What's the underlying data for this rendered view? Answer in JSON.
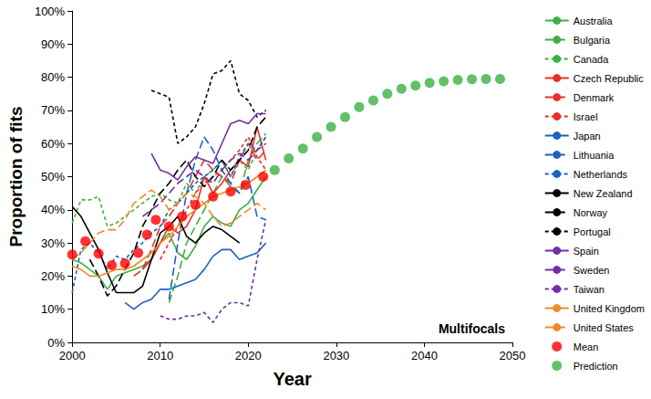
{
  "chart_data": {
    "type": "line",
    "annotation": "Multifocals",
    "x_label": "Year",
    "y_label": "Proportion of fits",
    "xlim": [
      2000,
      2050
    ],
    "xticks": [
      2000,
      2010,
      2020,
      2030,
      2040,
      2050
    ],
    "ylim": [
      0,
      100
    ],
    "yticks": [
      {
        "value": 0,
        "label": "0%"
      },
      {
        "value": 10,
        "label": "10%"
      },
      {
        "value": 20,
        "label": "20%"
      },
      {
        "value": 30,
        "label": "30%"
      },
      {
        "value": 40,
        "label": "40%"
      },
      {
        "value": 50,
        "label": "50%"
      },
      {
        "value": 60,
        "label": "60%"
      },
      {
        "value": 70,
        "label": "70%"
      },
      {
        "value": 80,
        "label": "80%"
      },
      {
        "value": 90,
        "label": "90%"
      },
      {
        "value": 100,
        "label": "100%"
      }
    ],
    "grid": false,
    "legend": "right",
    "series": [
      {
        "name": "Australia",
        "color": "#3cb043",
        "line_style": "solid",
        "x": [
          2000,
          2001,
          2002,
          2003,
          2004,
          2005,
          2006,
          2007,
          2008,
          2009,
          2010,
          2011,
          2012,
          2013,
          2014,
          2015,
          2016,
          2017,
          2018,
          2019,
          2020,
          2021,
          2022
        ],
        "values": [
          25,
          24,
          22,
          20,
          16,
          20,
          21,
          22,
          23,
          25,
          30,
          33,
          27,
          25,
          29,
          35,
          38,
          36,
          35,
          40,
          42,
          46,
          50
        ]
      },
      {
        "name": "Bulgaria",
        "color": "#3cb043",
        "line_style": "longdash",
        "x": [
          2011,
          2012,
          2013,
          2014,
          2015,
          2016,
          2017,
          2018,
          2019,
          2020,
          2021,
          2022
        ],
        "values": [
          12,
          20,
          30,
          35,
          40,
          45,
          50,
          47,
          45,
          55,
          60,
          63
        ]
      },
      {
        "name": "Canada",
        "color": "#3cb043",
        "line_style": "dashed",
        "x": [
          2000,
          2001,
          2002,
          2003,
          2004,
          2005,
          2006,
          2007,
          2008,
          2009,
          2010,
          2011,
          2012,
          2013,
          2014,
          2015,
          2016,
          2017,
          2018,
          2019,
          2020,
          2021,
          2022
        ],
        "values": [
          36,
          43,
          43,
          44,
          35,
          36,
          38,
          40,
          42,
          44,
          45,
          43,
          42,
          48,
          45,
          50,
          52,
          55,
          50,
          55,
          52,
          58,
          62
        ]
      },
      {
        "name": "Czech Republic",
        "color": "#e8302a",
        "line_style": "solid",
        "x": [
          2008,
          2009,
          2010,
          2011,
          2012,
          2013,
          2014,
          2015,
          2016,
          2017,
          2018,
          2019,
          2020,
          2021,
          2022
        ],
        "values": [
          22,
          25,
          30,
          35,
          33,
          35,
          40,
          50,
          45,
          48,
          52,
          55,
          53,
          65,
          55
        ]
      },
      {
        "name": "Denmark",
        "color": "#e8302a",
        "line_style": "longdash",
        "x": [
          2007,
          2008,
          2009,
          2010,
          2011,
          2012,
          2013,
          2014,
          2015,
          2016,
          2017,
          2018,
          2019,
          2020,
          2021,
          2022
        ],
        "values": [
          20,
          22,
          28,
          35,
          38,
          42,
          45,
          50,
          55,
          52,
          50,
          48,
          55,
          60,
          55,
          58
        ]
      },
      {
        "name": "Israel",
        "color": "#e8302a",
        "line_style": "dashed",
        "x": [
          2010,
          2011,
          2012,
          2013,
          2014,
          2015,
          2016,
          2017,
          2018,
          2019,
          2020,
          2021,
          2022
        ],
        "values": [
          25,
          30,
          35,
          40,
          45,
          48,
          50,
          52,
          55,
          58,
          62,
          56,
          52
        ]
      },
      {
        "name": "Japan",
        "color": "#2060c0",
        "line_style": "solid",
        "x": [
          2006,
          2007,
          2008,
          2009,
          2010,
          2011,
          2012,
          2013,
          2014,
          2015,
          2016,
          2017,
          2018,
          2019,
          2020,
          2021,
          2022
        ],
        "values": [
          12,
          10,
          12,
          13,
          16,
          16,
          17,
          18,
          19,
          22,
          26,
          28,
          28,
          25,
          26,
          27,
          30
        ]
      },
      {
        "name": "Lithuania",
        "color": "#2060c0",
        "line_style": "longdash",
        "x": [
          2011,
          2012,
          2013,
          2014,
          2015,
          2016,
          2017,
          2018,
          2019,
          2020,
          2021,
          2022
        ],
        "values": [
          13,
          30,
          45,
          55,
          62,
          58,
          52,
          48,
          45,
          50,
          38,
          37
        ]
      },
      {
        "name": "Netherlands",
        "color": "#2060c0",
        "line_style": "dashed",
        "x": [
          2000,
          2001,
          2002,
          2003,
          2004,
          2005,
          2006,
          2007,
          2008,
          2009,
          2010,
          2011,
          2012,
          2013,
          2014,
          2015,
          2016,
          2017,
          2018,
          2019,
          2020,
          2021,
          2022
        ],
        "values": [
          15,
          28,
          30,
          27,
          22,
          26,
          25,
          28,
          30,
          33,
          35,
          40,
          42,
          45,
          48,
          50,
          52,
          55,
          50,
          56,
          60,
          58,
          62
        ]
      },
      {
        "name": "New Zealand",
        "color": "#000000",
        "line_style": "solid",
        "x": [
          2000,
          2001,
          2002,
          2003,
          2004,
          2005,
          2006,
          2007,
          2008,
          2009,
          2010,
          2011,
          2012,
          2013,
          2014,
          2015,
          2016,
          2017,
          2018,
          2019
        ],
        "values": [
          41,
          38,
          33,
          28,
          21,
          15,
          15,
          15,
          17,
          25,
          33,
          35,
          38,
          32,
          30,
          33,
          35,
          34,
          32,
          30
        ]
      },
      {
        "name": "Norway",
        "color": "#000000",
        "line_style": "longdash",
        "x": [
          2002,
          2003,
          2004,
          2005,
          2006,
          2007,
          2008,
          2009,
          2010,
          2011,
          2012,
          2013,
          2014,
          2015,
          2016,
          2017,
          2018,
          2019,
          2020,
          2021,
          2022
        ],
        "values": [
          25,
          20,
          14,
          17,
          22,
          27,
          35,
          40,
          45,
          48,
          52,
          55,
          50,
          47,
          50,
          55,
          52,
          55,
          58,
          65,
          68
        ]
      },
      {
        "name": "Portugal",
        "color": "#000000",
        "line_style": "dashed",
        "x": [
          2009,
          2010,
          2011,
          2012,
          2013,
          2014,
          2015,
          2016,
          2017,
          2018,
          2019,
          2020,
          2021,
          2022
        ],
        "values": [
          76,
          75,
          74,
          60,
          62,
          65,
          72,
          81,
          82,
          85,
          75,
          73,
          68,
          70
        ]
      },
      {
        "name": "Spain",
        "color": "#7030a0",
        "line_style": "solid",
        "x": [
          2009,
          2010,
          2011,
          2012,
          2013,
          2014,
          2015,
          2016,
          2017,
          2018,
          2019,
          2020,
          2021,
          2022
        ],
        "values": [
          57,
          52,
          51,
          49,
          53,
          56,
          55,
          54,
          60,
          66,
          67,
          66,
          69,
          69
        ]
      },
      {
        "name": "Sweden",
        "color": "#7030a0",
        "line_style": "longdash",
        "x": [
          2008,
          2009,
          2010,
          2011,
          2012,
          2013,
          2014,
          2015,
          2016,
          2017,
          2018,
          2019,
          2020,
          2021,
          2022
        ],
        "values": [
          38,
          40,
          42,
          45,
          48,
          50,
          52,
          50,
          48,
          52,
          55,
          57,
          55,
          58,
          60
        ]
      },
      {
        "name": "Taiwan",
        "color": "#7030a0",
        "line_style": "dashed",
        "x": [
          2010,
          2011,
          2012,
          2013,
          2014,
          2015,
          2016,
          2017,
          2018,
          2019,
          2020,
          2021,
          2022
        ],
        "values": [
          8,
          7,
          7,
          8,
          8,
          9,
          6,
          10,
          12,
          12,
          11,
          25,
          37
        ]
      },
      {
        "name": "United Kingdom",
        "color": "#f08a24",
        "line_style": "solid",
        "x": [
          2000,
          2001,
          2002,
          2003,
          2004,
          2005,
          2006,
          2007,
          2008,
          2009,
          2010,
          2011,
          2012,
          2013,
          2014,
          2015,
          2016,
          2017,
          2018,
          2019,
          2020,
          2021,
          2022
        ],
        "values": [
          23,
          22,
          20,
          20,
          21,
          22,
          22,
          23,
          25,
          27,
          30,
          32,
          35,
          38,
          40,
          42,
          44,
          45,
          46,
          47,
          48,
          50,
          52
        ]
      },
      {
        "name": "United States",
        "color": "#f08a24",
        "line_style": "longdash",
        "x": [
          2000,
          2001,
          2002,
          2003,
          2004,
          2005,
          2006,
          2007,
          2008,
          2009,
          2010,
          2011,
          2012,
          2013,
          2014,
          2015,
          2016,
          2017,
          2018,
          2019,
          2020,
          2021,
          2022
        ],
        "values": [
          25,
          27,
          30,
          33,
          34,
          34,
          37,
          42,
          44,
          46,
          44,
          40,
          42,
          45,
          44,
          42,
          38,
          35,
          36,
          38,
          40,
          42,
          40
        ]
      },
      {
        "name": "Mean",
        "color": "#ff0000",
        "type": "scatter",
        "marker": "circle",
        "x": [
          2000,
          2001.5,
          2003,
          2004.5,
          2006,
          2007.5,
          2008.5,
          2009.5,
          2011,
          2012.5,
          2014,
          2016,
          2018,
          2019.7,
          2021.7
        ],
        "values": [
          26.5,
          30.5,
          26.8,
          23.3,
          23.8,
          27,
          32.5,
          37,
          35,
          38,
          41.5,
          44,
          45.5,
          47.5,
          50
        ]
      },
      {
        "name": "Prediction",
        "color": "#3cb043",
        "type": "scatter",
        "marker": "circle",
        "x": [
          2023,
          2024.6,
          2026.2,
          2027.8,
          2029.4,
          2031,
          2032.6,
          2034.2,
          2035.8,
          2037.4,
          2039,
          2040.6,
          2042.2,
          2043.8,
          2045.4,
          2047,
          2048.6
        ],
        "values": [
          52,
          55.5,
          58.5,
          62,
          65,
          68,
          71,
          73,
          75,
          76.5,
          77.5,
          78.3,
          78.8,
          79.2,
          79.4,
          79.5,
          79.5
        ]
      }
    ]
  }
}
